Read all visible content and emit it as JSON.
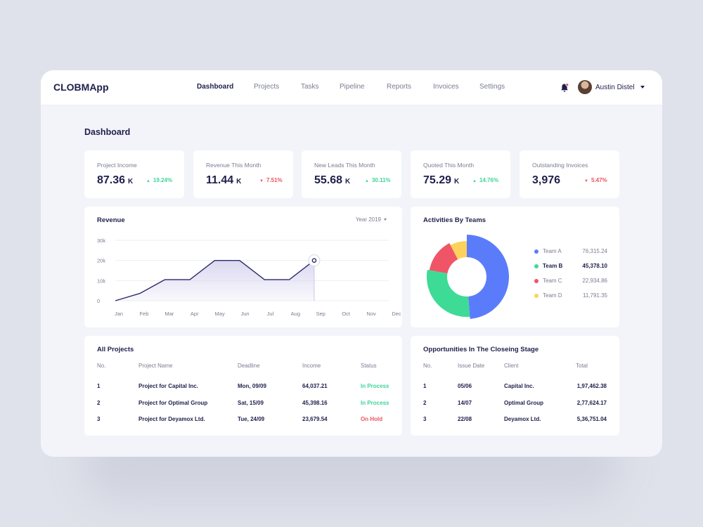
{
  "app": {
    "name": "CLOBMApp"
  },
  "nav": {
    "items": [
      {
        "label": "Dashboard",
        "active": true
      },
      {
        "label": "Projects",
        "active": false
      },
      {
        "label": "Tasks",
        "active": false
      },
      {
        "label": "Pipeline",
        "active": false
      },
      {
        "label": "Reports",
        "active": false
      },
      {
        "label": "Invoices",
        "active": false
      },
      {
        "label": "Settings",
        "active": false
      }
    ]
  },
  "user": {
    "name": "Austin Distel"
  },
  "page": {
    "title": "Dashboard"
  },
  "kpis": [
    {
      "label": "Project Income",
      "value": "87.36",
      "unit": "K",
      "change": "19.24%",
      "direction": "up"
    },
    {
      "label": "Revenue This Month",
      "value": "11.44",
      "unit": "K",
      "change": "7.51%",
      "direction": "down"
    },
    {
      "label": "New Leads This Month",
      "value": "55.68",
      "unit": "K",
      "change": "30.11%",
      "direction": "up"
    },
    {
      "label": "Quoted This Month",
      "value": "75.29",
      "unit": "K",
      "change": "14.76%",
      "direction": "up"
    },
    {
      "label": "Outstanding Invoices",
      "value": "3,976",
      "unit": "",
      "change": "5.47%",
      "direction": "down"
    }
  ],
  "revenue": {
    "title": "Revenue",
    "period_selector": "Year 2019"
  },
  "chart_data": {
    "type": "area",
    "categories": [
      "Jan",
      "Feb",
      "Mar",
      "Apr",
      "May",
      "Jun",
      "Jul",
      "Aug",
      "Sep",
      "Oct",
      "Nov",
      "Dec"
    ],
    "series": [
      {
        "values": [
          0,
          3700,
          10500,
          10500,
          20000,
          20000,
          10500,
          10500,
          20000,
          null,
          null,
          null
        ]
      }
    ],
    "yticks": [
      "0",
      "10k",
      "20k",
      "30k"
    ],
    "ylim": [
      0,
      30000
    ],
    "grid": true,
    "highlight_index": 8,
    "line_color": "#2c2a6b",
    "fill_color": "#d9d6ef"
  },
  "activities": {
    "title": "Activities By Teams",
    "teams": [
      {
        "name": "Team A",
        "value": "76,315.24",
        "amount": 76315.24,
        "color": "#5b7cfa",
        "bold": false
      },
      {
        "name": "Team B",
        "value": "45,378.10",
        "amount": 45378.1,
        "color": "#3ddb96",
        "bold": true
      },
      {
        "name": "Team C",
        "value": "22,934.86",
        "amount": 22934.86,
        "color": "#ef5566",
        "bold": false
      },
      {
        "name": "Team D",
        "value": "11,791.35",
        "amount": 11791.35,
        "color": "#fdd25c",
        "bold": false
      }
    ]
  },
  "projects": {
    "title": "All Projects",
    "columns": [
      "No.",
      "Project Name",
      "Deadline",
      "Income",
      "Status"
    ],
    "rows": [
      {
        "no": "1",
        "name": "Project for Capital Inc.",
        "deadline": "Mon, 09/09",
        "income": "64,037.21",
        "status": "In Process",
        "status_type": "process"
      },
      {
        "no": "2",
        "name": "Project for Optimal Group",
        "deadline": "Sat, 15/09",
        "income": "45,398.16",
        "status": "In Process",
        "status_type": "process"
      },
      {
        "no": "3",
        "name": "Project for Deyamox Ltd.",
        "deadline": "Tue, 24/09",
        "income": "23,679.54",
        "status": "On Hold",
        "status_type": "hold"
      }
    ]
  },
  "opportunities": {
    "title": "Opportunities In The Closeing Stage",
    "columns": [
      "No.",
      "Issue Date",
      "Client",
      "Total"
    ],
    "rows": [
      {
        "no": "1",
        "date": "05/06",
        "client": "Capital Inc.",
        "total": "1,97,462.38"
      },
      {
        "no": "2",
        "date": "14/07",
        "client": "Optimal Group",
        "total": "2,77,624.17"
      },
      {
        "no": "3",
        "date": "22/08",
        "client": "Deyamox Ltd.",
        "total": "5,36,751.04"
      }
    ]
  },
  "colors": {
    "accent": "#1e1f4b",
    "positive": "#3dd598",
    "negative": "#e8555d",
    "notification": "#e8555d"
  }
}
